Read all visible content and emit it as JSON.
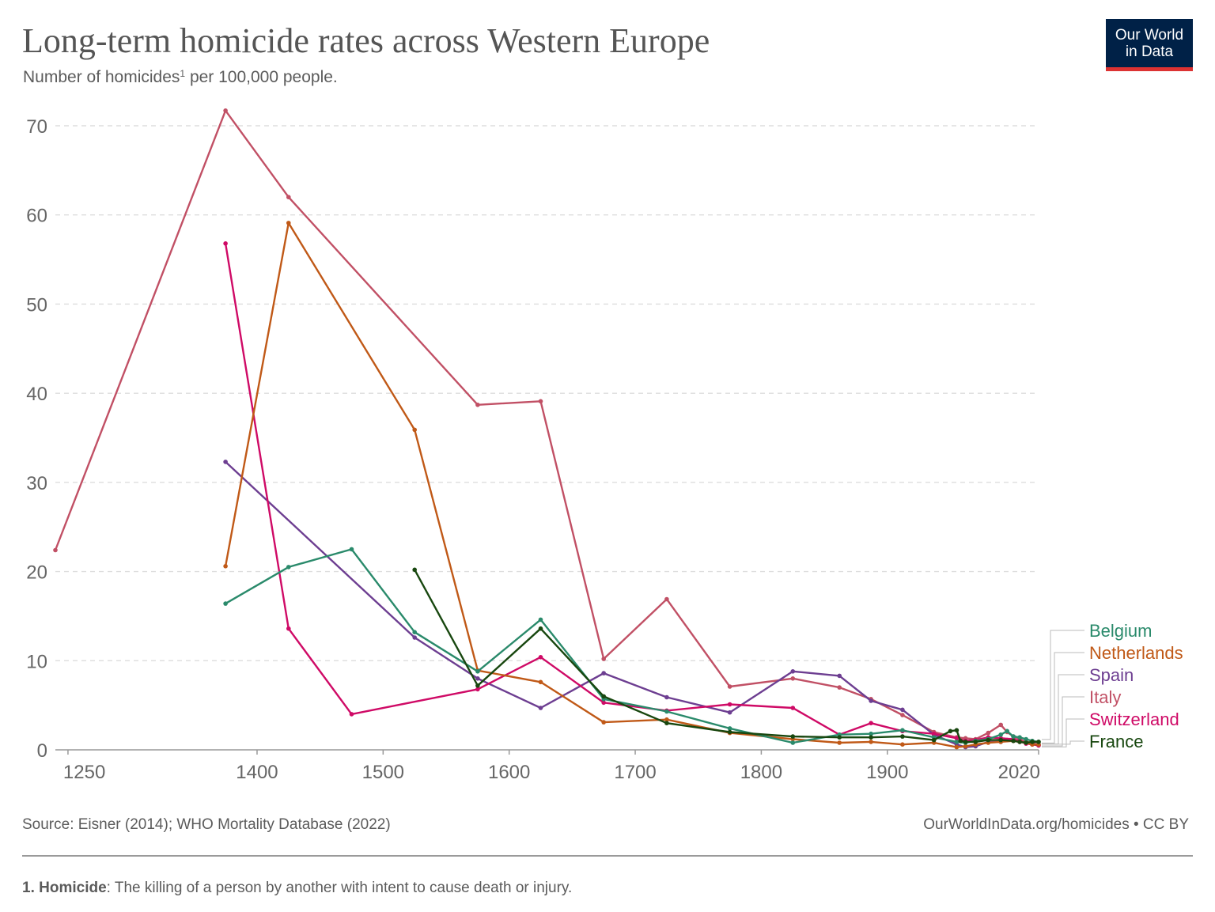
{
  "title": "Long-term homicide rates across Western Europe",
  "subtitle": {
    "text": "Number of homicides",
    "footnote_marker": "1",
    "text_after": " per 100,000 people."
  },
  "logo": {
    "line1": "Our World",
    "line2": "in Data",
    "bg_color": "#002147",
    "accent_color": "#dc3232"
  },
  "source": "Source: Eisner (2014); WHO Mortality Database (2022)",
  "credit": "OurWorldInData.org/homicides • CC BY",
  "footnote": {
    "marker": "1. Homicide",
    "text": ": The killing of a person by another with intent to cause death or injury."
  },
  "chart_data": {
    "type": "line",
    "xlim": [
      1240,
      2020
    ],
    "ylim": [
      0,
      70
    ],
    "x_ticks": [
      1250,
      1400,
      1500,
      1600,
      1700,
      1800,
      1900,
      2020
    ],
    "y_ticks": [
      0,
      10,
      20,
      30,
      40,
      50,
      60,
      70
    ],
    "grid": "horizontal dashed",
    "legend_placement": "right (end of lines)",
    "series": [
      {
        "name": "Belgium",
        "color": "#2a8a6b",
        "points": [
          [
            1375,
            16.4
          ],
          [
            1425,
            20.5
          ],
          [
            1475,
            22.5
          ],
          [
            1525,
            13.2
          ],
          [
            1575,
            8.8
          ],
          [
            1625,
            14.6
          ],
          [
            1675,
            5.7
          ],
          [
            1725,
            4.3
          ],
          [
            1775,
            2.4
          ],
          [
            1825,
            0.8
          ],
          [
            1862,
            1.7
          ],
          [
            1887,
            1.8
          ],
          [
            1912,
            2.2
          ],
          [
            1937,
            1.4
          ],
          [
            1955,
            0.9
          ],
          [
            1962,
            0.8
          ],
          [
            1970,
            1.0
          ],
          [
            1980,
            1.2
          ],
          [
            1990,
            1.7
          ],
          [
            1995,
            2.1
          ],
          [
            2000,
            1.5
          ],
          [
            2005,
            1.4
          ],
          [
            2010,
            1.2
          ],
          [
            2015,
            1.0
          ],
          [
            2020,
            0.9
          ]
        ]
      },
      {
        "name": "Netherlands",
        "color": "#c05917",
        "points": [
          [
            1375,
            20.6
          ],
          [
            1425,
            59.1
          ],
          [
            1525,
            35.9
          ],
          [
            1575,
            8.9
          ],
          [
            1625,
            7.6
          ],
          [
            1675,
            3.1
          ],
          [
            1725,
            3.4
          ],
          [
            1775,
            1.9
          ],
          [
            1825,
            1.2
          ],
          [
            1862,
            0.8
          ],
          [
            1887,
            0.9
          ],
          [
            1912,
            0.6
          ],
          [
            1937,
            0.8
          ],
          [
            1955,
            0.3
          ],
          [
            1962,
            0.4
          ],
          [
            1970,
            0.6
          ],
          [
            1980,
            0.8
          ],
          [
            1990,
            0.9
          ],
          [
            2000,
            1.0
          ],
          [
            2005,
            0.9
          ],
          [
            2010,
            0.8
          ],
          [
            2015,
            0.6
          ],
          [
            2020,
            0.6
          ]
        ]
      },
      {
        "name": "Spain",
        "color": "#6d3e91",
        "points": [
          [
            1375,
            32.3
          ],
          [
            1525,
            12.6
          ],
          [
            1575,
            8.0
          ],
          [
            1625,
            4.7
          ],
          [
            1675,
            8.6
          ],
          [
            1725,
            5.9
          ],
          [
            1775,
            4.2
          ],
          [
            1825,
            8.8
          ],
          [
            1862,
            8.3
          ],
          [
            1887,
            5.5
          ],
          [
            1912,
            4.5
          ],
          [
            1937,
            1.7
          ],
          [
            1955,
            0.6
          ],
          [
            1962,
            0.3
          ],
          [
            1970,
            0.4
          ],
          [
            1980,
            0.9
          ],
          [
            1990,
            0.9
          ],
          [
            1995,
            1.1
          ],
          [
            2000,
            1.0
          ],
          [
            2005,
            0.9
          ],
          [
            2010,
            0.8
          ],
          [
            2015,
            0.7
          ],
          [
            2020,
            0.6
          ]
        ]
      },
      {
        "name": "Italy",
        "color": "#c15065",
        "points": [
          [
            1240,
            22.4
          ],
          [
            1375,
            71.7
          ],
          [
            1425,
            62.0
          ],
          [
            1575,
            38.7
          ],
          [
            1625,
            39.1
          ],
          [
            1675,
            10.2
          ],
          [
            1725,
            16.9
          ],
          [
            1775,
            7.1
          ],
          [
            1825,
            8.0
          ],
          [
            1862,
            7.0
          ],
          [
            1887,
            5.7
          ],
          [
            1912,
            3.9
          ],
          [
            1937,
            2.0
          ],
          [
            1955,
            1.4
          ],
          [
            1962,
            1.3
          ],
          [
            1970,
            1.2
          ],
          [
            1980,
            1.9
          ],
          [
            1990,
            2.8
          ],
          [
            1995,
            2.0
          ],
          [
            2000,
            1.5
          ],
          [
            2005,
            1.2
          ],
          [
            2010,
            0.9
          ],
          [
            2015,
            0.8
          ],
          [
            2020,
            0.5
          ]
        ]
      },
      {
        "name": "Switzerland",
        "color": "#cf0a66",
        "points": [
          [
            1375,
            56.8
          ],
          [
            1425,
            13.6
          ],
          [
            1475,
            4.0
          ],
          [
            1575,
            6.8
          ],
          [
            1625,
            10.4
          ],
          [
            1675,
            5.3
          ],
          [
            1725,
            4.4
          ],
          [
            1775,
            5.1
          ],
          [
            1825,
            4.7
          ],
          [
            1862,
            1.7
          ],
          [
            1887,
            3.0
          ],
          [
            1912,
            2.1
          ],
          [
            1937,
            1.8
          ],
          [
            1955,
            1.3
          ],
          [
            1962,
            1.0
          ],
          [
            1970,
            1.1
          ],
          [
            1980,
            1.4
          ],
          [
            1990,
            1.3
          ],
          [
            2000,
            1.2
          ],
          [
            2005,
            1.0
          ],
          [
            2010,
            0.7
          ],
          [
            2015,
            0.6
          ],
          [
            2020,
            0.5
          ]
        ]
      },
      {
        "name": "France",
        "color": "#18470f",
        "points": [
          [
            1525,
            20.2
          ],
          [
            1575,
            7.2
          ],
          [
            1625,
            13.6
          ],
          [
            1675,
            6.0
          ],
          [
            1725,
            3.0
          ],
          [
            1775,
            2.0
          ],
          [
            1825,
            1.5
          ],
          [
            1862,
            1.4
          ],
          [
            1887,
            1.4
          ],
          [
            1912,
            1.5
          ],
          [
            1937,
            1.1
          ],
          [
            1950,
            2.1
          ],
          [
            1955,
            2.2
          ],
          [
            1958,
            1.0
          ],
          [
            1962,
            0.9
          ],
          [
            1970,
            0.9
          ],
          [
            1980,
            1.1
          ],
          [
            1990,
            1.1
          ],
          [
            2000,
            1.0
          ],
          [
            2005,
            0.9
          ],
          [
            2010,
            0.8
          ],
          [
            2015,
            0.9
          ],
          [
            2020,
            0.9
          ]
        ]
      }
    ]
  }
}
